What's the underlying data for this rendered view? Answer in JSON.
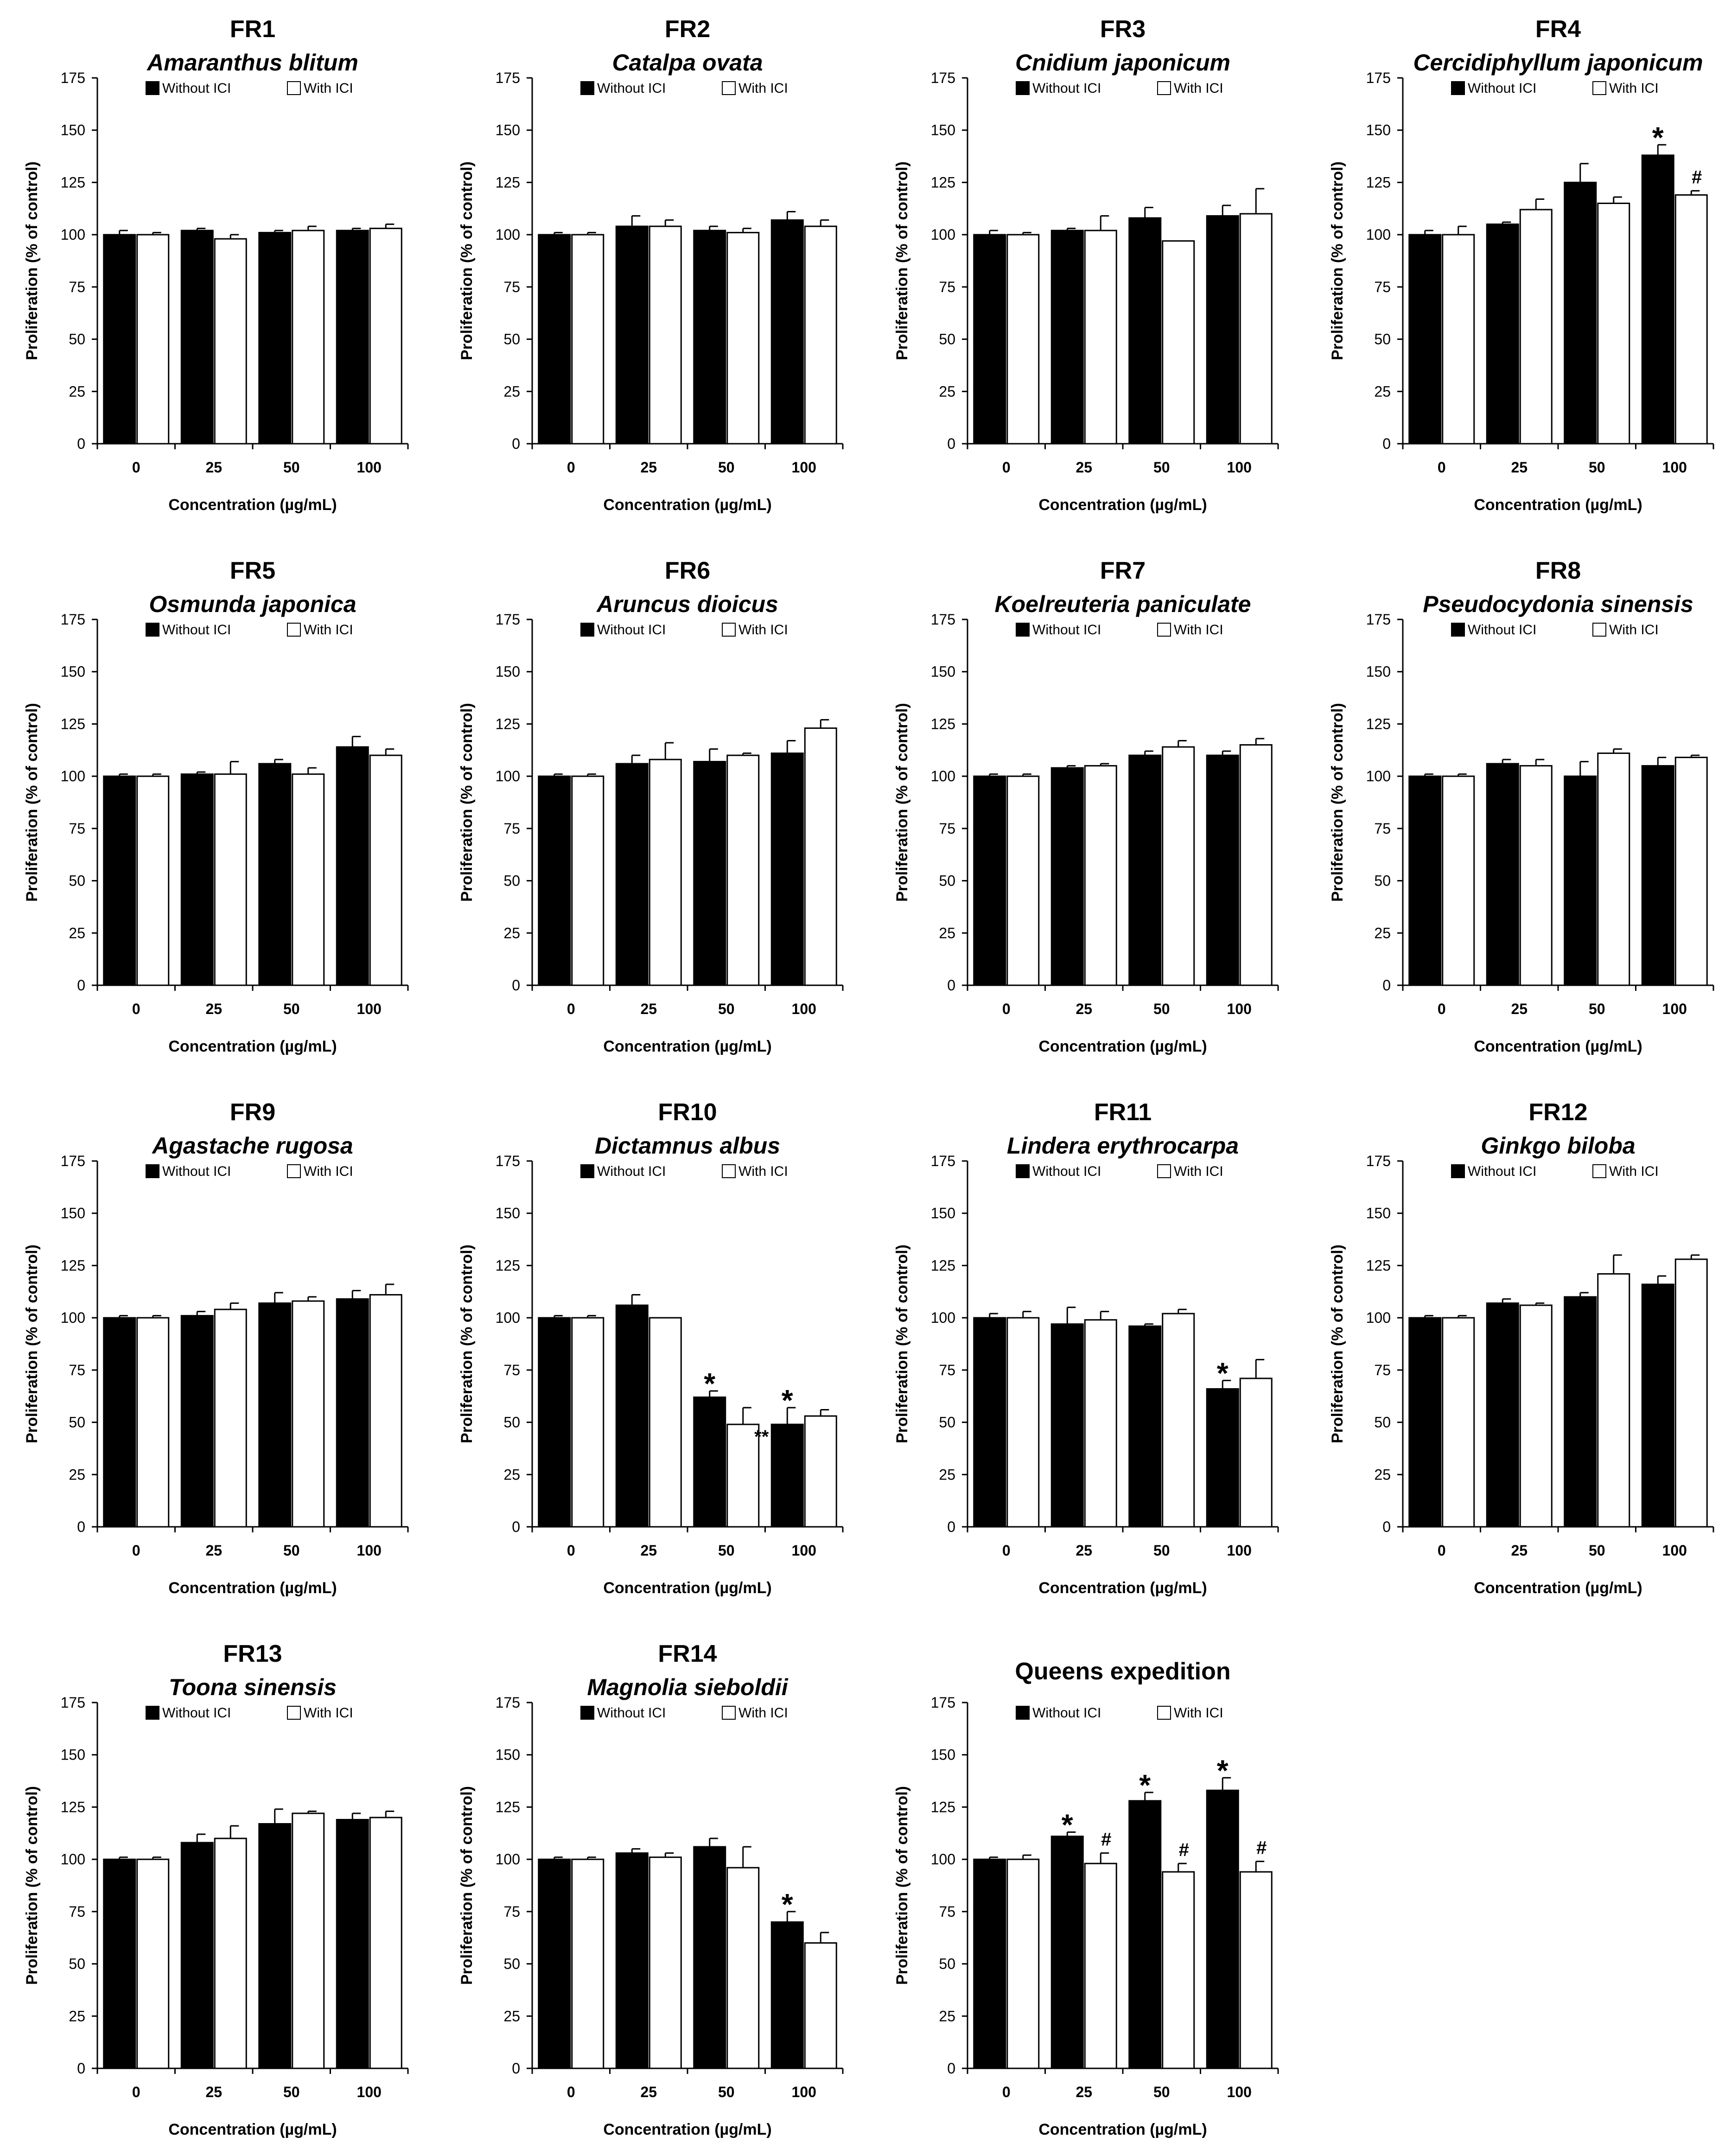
{
  "figure": {
    "x_label": "Concentration (µg/mL)",
    "y_label": "Proliferation (% of control)",
    "legend": [
      "Without ICI",
      "With ICI"
    ],
    "colors": {
      "without": "#000000",
      "with": "#ffffff",
      "outline": "#000000"
    }
  },
  "chart_data": [
    {
      "type": "bar",
      "code": "FR1",
      "title": "Amaranthus blitum",
      "categories": [
        "0",
        "25",
        "50",
        "100"
      ],
      "ylim": [
        0,
        175
      ],
      "yticks": [
        0,
        25,
        50,
        75,
        100,
        125,
        150,
        175
      ],
      "series": [
        {
          "name": "Without ICI",
          "values": [
            100,
            102,
            101,
            102
          ],
          "errors": [
            2,
            1,
            1,
            1
          ],
          "marks": [
            "",
            "",
            "",
            ""
          ]
        },
        {
          "name": "With ICI",
          "values": [
            100,
            98,
            102,
            103
          ],
          "errors": [
            1,
            2,
            2,
            2
          ],
          "marks": [
            "",
            "",
            "",
            ""
          ]
        }
      ]
    },
    {
      "type": "bar",
      "code": "FR2",
      "title": "Catalpa ovata",
      "categories": [
        "0",
        "25",
        "50",
        "100"
      ],
      "ylim": [
        0,
        175
      ],
      "yticks": [
        0,
        25,
        50,
        75,
        100,
        125,
        150,
        175
      ],
      "series": [
        {
          "name": "Without ICI",
          "values": [
            100,
            104,
            102,
            107
          ],
          "errors": [
            1,
            5,
            2,
            4
          ],
          "marks": [
            "",
            "",
            "",
            ""
          ]
        },
        {
          "name": "With ICI",
          "values": [
            100,
            104,
            101,
            104
          ],
          "errors": [
            1,
            3,
            2,
            3
          ],
          "marks": [
            "",
            "",
            "",
            ""
          ]
        }
      ]
    },
    {
      "type": "bar",
      "code": "FR3",
      "title": "Cnidium japonicum",
      "categories": [
        "0",
        "25",
        "50",
        "100"
      ],
      "ylim": [
        0,
        175
      ],
      "yticks": [
        0,
        25,
        50,
        75,
        100,
        125,
        150,
        175
      ],
      "series": [
        {
          "name": "Without ICI",
          "values": [
            100,
            102,
            108,
            109
          ],
          "errors": [
            2,
            1,
            5,
            5
          ],
          "marks": [
            "",
            "",
            "",
            ""
          ]
        },
        {
          "name": "With ICI",
          "values": [
            100,
            102,
            97,
            110
          ],
          "errors": [
            1,
            7,
            0,
            12
          ],
          "marks": [
            "",
            "",
            "",
            ""
          ]
        }
      ]
    },
    {
      "type": "bar",
      "code": "FR4",
      "title": "Cercidiphyllum japonicum",
      "categories": [
        "0",
        "25",
        "50",
        "100"
      ],
      "ylim": [
        0,
        175
      ],
      "yticks": [
        0,
        25,
        50,
        75,
        100,
        125,
        150,
        175
      ],
      "series": [
        {
          "name": "Without ICI",
          "values": [
            100,
            105,
            125,
            138
          ],
          "errors": [
            2,
            1,
            9,
            5
          ],
          "marks": [
            "",
            "",
            "",
            "*"
          ]
        },
        {
          "name": "With ICI",
          "values": [
            100,
            112,
            115,
            119
          ],
          "errors": [
            4,
            5,
            3,
            2
          ],
          "marks": [
            "",
            "",
            "",
            "#"
          ]
        }
      ]
    },
    {
      "type": "bar",
      "code": "FR5",
      "title": "Osmunda japonica",
      "categories": [
        "0",
        "25",
        "50",
        "100"
      ],
      "ylim": [
        0,
        175
      ],
      "yticks": [
        0,
        25,
        50,
        75,
        100,
        125,
        150,
        175
      ],
      "series": [
        {
          "name": "Without ICI",
          "values": [
            100,
            101,
            106,
            114
          ],
          "errors": [
            1,
            1,
            2,
            5
          ],
          "marks": [
            "",
            "",
            "",
            ""
          ]
        },
        {
          "name": "With ICI",
          "values": [
            100,
            101,
            101,
            110
          ],
          "errors": [
            1,
            6,
            3,
            3
          ],
          "marks": [
            "",
            "",
            "",
            ""
          ]
        }
      ]
    },
    {
      "type": "bar",
      "code": "FR6",
      "title": "Aruncus dioicus",
      "categories": [
        "0",
        "25",
        "50",
        "100"
      ],
      "ylim": [
        0,
        175
      ],
      "yticks": [
        0,
        25,
        50,
        75,
        100,
        125,
        150,
        175
      ],
      "series": [
        {
          "name": "Without ICI",
          "values": [
            100,
            106,
            107,
            111
          ],
          "errors": [
            1,
            4,
            6,
            6
          ],
          "marks": [
            "",
            "",
            "",
            ""
          ]
        },
        {
          "name": "With ICI",
          "values": [
            100,
            108,
            110,
            123
          ],
          "errors": [
            1,
            8,
            1,
            4
          ],
          "marks": [
            "",
            "",
            "",
            ""
          ]
        }
      ]
    },
    {
      "type": "bar",
      "code": "FR7",
      "title": "Koelreuteria paniculate",
      "categories": [
        "0",
        "25",
        "50",
        "100"
      ],
      "ylim": [
        0,
        175
      ],
      "yticks": [
        0,
        25,
        50,
        75,
        100,
        125,
        150,
        175
      ],
      "series": [
        {
          "name": "Without ICI",
          "values": [
            100,
            104,
            110,
            110
          ],
          "errors": [
            1,
            1,
            2,
            2
          ],
          "marks": [
            "",
            "",
            "",
            ""
          ]
        },
        {
          "name": "With ICI",
          "values": [
            100,
            105,
            114,
            115
          ],
          "errors": [
            1,
            1,
            3,
            3
          ],
          "marks": [
            "",
            "",
            "",
            ""
          ]
        }
      ]
    },
    {
      "type": "bar",
      "code": "FR8",
      "title": "Pseudocydonia sinensis",
      "categories": [
        "0",
        "25",
        "50",
        "100"
      ],
      "ylim": [
        0,
        175
      ],
      "yticks": [
        0,
        25,
        50,
        75,
        100,
        125,
        150,
        175
      ],
      "series": [
        {
          "name": "Without ICI",
          "values": [
            100,
            106,
            100,
            105
          ],
          "errors": [
            1,
            2,
            7,
            4
          ],
          "marks": [
            "",
            "",
            "",
            ""
          ]
        },
        {
          "name": "With ICI",
          "values": [
            100,
            105,
            111,
            109
          ],
          "errors": [
            1,
            3,
            2,
            1
          ],
          "marks": [
            "",
            "",
            "",
            ""
          ]
        }
      ]
    },
    {
      "type": "bar",
      "code": "FR9",
      "title": "Agastache rugosa",
      "categories": [
        "0",
        "25",
        "50",
        "100"
      ],
      "ylim": [
        0,
        175
      ],
      "yticks": [
        0,
        25,
        50,
        75,
        100,
        125,
        150,
        175
      ],
      "series": [
        {
          "name": "Without ICI",
          "values": [
            100,
            101,
            107,
            109
          ],
          "errors": [
            1,
            2,
            5,
            4
          ],
          "marks": [
            "",
            "",
            "",
            ""
          ]
        },
        {
          "name": "With ICI",
          "values": [
            100,
            104,
            108,
            111
          ],
          "errors": [
            1,
            3,
            2,
            5
          ],
          "marks": [
            "",
            "",
            "",
            ""
          ]
        }
      ]
    },
    {
      "type": "bar",
      "code": "FR10",
      "title": "Dictamnus albus",
      "categories": [
        "0",
        "25",
        "50",
        "100"
      ],
      "ylim": [
        0,
        175
      ],
      "yticks": [
        0,
        25,
        50,
        75,
        100,
        125,
        150,
        175
      ],
      "series": [
        {
          "name": "Without ICI",
          "values": [
            100,
            106,
            62,
            49
          ],
          "errors": [
            1,
            5,
            3,
            8
          ],
          "marks": [
            "",
            "",
            "*",
            "*"
          ]
        },
        {
          "name": "With ICI",
          "values": [
            100,
            100,
            49,
            53
          ],
          "errors": [
            1,
            0,
            8,
            3
          ],
          "marks": [
            "",
            "",
            "**",
            ""
          ]
        }
      ]
    },
    {
      "type": "bar",
      "code": "FR11",
      "title": "Lindera erythrocarpa",
      "categories": [
        "0",
        "25",
        "50",
        "100"
      ],
      "ylim": [
        0,
        175
      ],
      "yticks": [
        0,
        25,
        50,
        75,
        100,
        125,
        150,
        175
      ],
      "series": [
        {
          "name": "Without ICI",
          "values": [
            100,
            97,
            96,
            66
          ],
          "errors": [
            2,
            8,
            1,
            4
          ],
          "marks": [
            "",
            "",
            "",
            "*"
          ]
        },
        {
          "name": "With ICI",
          "values": [
            100,
            99,
            102,
            71
          ],
          "errors": [
            3,
            4,
            2,
            9
          ],
          "marks": [
            "",
            "",
            "",
            ""
          ]
        }
      ]
    },
    {
      "type": "bar",
      "code": "FR12",
      "title": "Ginkgo biloba",
      "categories": [
        "0",
        "25",
        "50",
        "100"
      ],
      "ylim": [
        0,
        175
      ],
      "yticks": [
        0,
        25,
        50,
        75,
        100,
        125,
        150,
        175
      ],
      "series": [
        {
          "name": "Without ICI",
          "values": [
            100,
            107,
            110,
            116
          ],
          "errors": [
            1,
            2,
            2,
            4
          ],
          "marks": [
            "",
            "",
            "",
            ""
          ]
        },
        {
          "name": "With ICI",
          "values": [
            100,
            106,
            121,
            128
          ],
          "errors": [
            1,
            1,
            9,
            2
          ],
          "marks": [
            "",
            "",
            "",
            ""
          ]
        }
      ]
    },
    {
      "type": "bar",
      "code": "FR13",
      "title": "Toona sinensis",
      "categories": [
        "0",
        "25",
        "50",
        "100"
      ],
      "ylim": [
        0,
        175
      ],
      "yticks": [
        0,
        25,
        50,
        75,
        100,
        125,
        150,
        175
      ],
      "series": [
        {
          "name": "Without ICI",
          "values": [
            100,
            108,
            117,
            119
          ],
          "errors": [
            1,
            4,
            7,
            3
          ],
          "marks": [
            "",
            "",
            "",
            ""
          ]
        },
        {
          "name": "With ICI",
          "values": [
            100,
            110,
            122,
            120
          ],
          "errors": [
            1,
            6,
            1,
            3
          ],
          "marks": [
            "",
            "",
            "",
            ""
          ]
        }
      ]
    },
    {
      "type": "bar",
      "code": "FR14",
      "title": "Magnolia sieboldii",
      "categories": [
        "0",
        "25",
        "50",
        "100"
      ],
      "ylim": [
        0,
        175
      ],
      "yticks": [
        0,
        25,
        50,
        75,
        100,
        125,
        150,
        175
      ],
      "series": [
        {
          "name": "Without ICI",
          "values": [
            100,
            103,
            106,
            70
          ],
          "errors": [
            1,
            2,
            4,
            5
          ],
          "marks": [
            "",
            "",
            "",
            "*"
          ]
        },
        {
          "name": "With ICI",
          "values": [
            100,
            101,
            96,
            60
          ],
          "errors": [
            1,
            2,
            10,
            5
          ],
          "marks": [
            "",
            "",
            "",
            ""
          ]
        }
      ]
    },
    {
      "type": "bar",
      "code": "",
      "title": "Queens expedition",
      "categories": [
        "0",
        "25",
        "50",
        "100"
      ],
      "ylim": [
        0,
        175
      ],
      "yticks": [
        0,
        25,
        50,
        75,
        100,
        125,
        150,
        175
      ],
      "series": [
        {
          "name": "Without ICI",
          "values": [
            100,
            111,
            128,
            133
          ],
          "errors": [
            1,
            2,
            4,
            6
          ],
          "marks": [
            "",
            "*",
            "*",
            "*"
          ]
        },
        {
          "name": "With ICI",
          "values": [
            100,
            98,
            94,
            94
          ],
          "errors": [
            2,
            5,
            4,
            5
          ],
          "marks": [
            "",
            "#",
            "#",
            "#"
          ]
        }
      ]
    }
  ]
}
